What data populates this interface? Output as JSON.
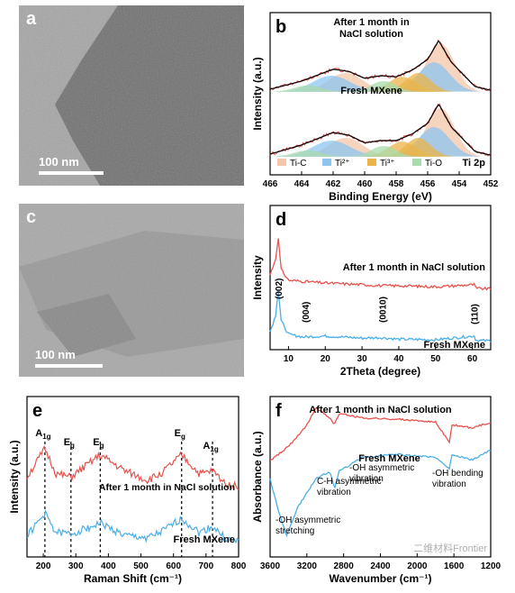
{
  "panel_a": {
    "letter": "a",
    "scalebar": "100 nm"
  },
  "panel_c": {
    "letter": "c",
    "scalebar": "100 nm"
  },
  "chart_data": [
    {
      "panel": "b",
      "type": "line",
      "xlabel": "Binding Energy (eV)",
      "ylabel": "Intensity (a.u.)",
      "x_reversed": true,
      "xlim": [
        466,
        452
      ],
      "xticks": [
        "466",
        "464",
        "462",
        "460",
        "458",
        "456",
        "454",
        "452"
      ],
      "spectrum_label": "Ti 2p",
      "legend": [
        "Ti-C",
        "Ti²⁺",
        "Ti³⁺",
        "Ti-O"
      ],
      "legend_colors": [
        "#f4c6a8",
        "#8ec5ef",
        "#e9b44a",
        "#a8dcae"
      ],
      "series": [
        {
          "name": "After 1 month in NaCl solution",
          "label_lines": [
            "After 1 month in",
            "NaCl solution"
          ],
          "x": [
            466,
            464,
            462,
            461,
            460,
            459,
            458,
            457,
            456,
            455.3,
            454.5,
            453,
            452
          ],
          "y": [
            0.05,
            0.2,
            0.42,
            0.38,
            0.25,
            0.3,
            0.28,
            0.4,
            0.6,
            0.95,
            0.55,
            0.1,
            0.03
          ]
        },
        {
          "name": "Fresh MXene",
          "label_lines": [
            "Fresh MXene"
          ],
          "x": [
            466,
            464,
            462,
            461,
            460,
            459,
            458,
            457,
            456,
            455.3,
            454.5,
            453,
            452
          ],
          "y": [
            0.05,
            0.22,
            0.45,
            0.4,
            0.26,
            0.3,
            0.3,
            0.42,
            0.62,
            0.98,
            0.55,
            0.1,
            0.03
          ]
        }
      ]
    },
    {
      "panel": "d",
      "type": "line",
      "xlabel": "2Theta (degree)",
      "ylabel": "Intensity",
      "xlim": [
        5,
        65
      ],
      "xticks": [
        "10",
        "20",
        "30",
        "40",
        "50",
        "60"
      ],
      "series": [
        {
          "name": "After 1 month in NaCl solution",
          "color": "#e8514c",
          "x": [
            5,
            6.5,
            7.2,
            8,
            10,
            20,
            30,
            35,
            40,
            50,
            60.5,
            61,
            65
          ],
          "y": [
            0.3,
            0.6,
            1.0,
            0.4,
            0.2,
            0.15,
            0.12,
            0.1,
            0.1,
            0.08,
            0.12,
            0.05,
            0.04
          ]
        },
        {
          "name": "Fresh MXene",
          "color": "#4aaee8",
          "x": [
            5,
            6.5,
            7.2,
            8,
            10,
            14,
            20,
            30,
            35,
            40,
            50,
            60.5,
            61,
            65
          ],
          "y": [
            0.2,
            0.5,
            1.0,
            0.4,
            0.15,
            0.1,
            0.12,
            0.08,
            0.09,
            0.06,
            0.05,
            0.12,
            0.04,
            0.03
          ]
        }
      ],
      "peak_labels": [
        {
          "text": "(002)",
          "x": 7.2
        },
        {
          "text": "(004)",
          "x": 14.5
        },
        {
          "text": "(0010)",
          "x": 35.5
        },
        {
          "text": "(110)",
          "x": 60.5
        }
      ]
    },
    {
      "panel": "e",
      "type": "line",
      "xlabel": "Raman Shift (cm⁻¹)",
      "ylabel": "Intensity (a.u.)",
      "xlim": [
        150,
        800
      ],
      "xticks": [
        "200",
        "300",
        "400",
        "500",
        "600",
        "700",
        "800"
      ],
      "mode_positions": [
        205,
        285,
        375,
        625,
        720
      ],
      "mode_labels": [
        {
          "main": "A",
          "sub": "1g"
        },
        {
          "main": "E",
          "sub": "g"
        },
        {
          "main": "E",
          "sub": "g"
        },
        {
          "main": "E",
          "sub": "g"
        },
        {
          "main": "A",
          "sub": "1g"
        }
      ],
      "series": [
        {
          "name": "After 1 month in NaCl solution",
          "color": "#e8514c",
          "x": [
            150,
            205,
            240,
            285,
            375,
            450,
            520,
            560,
            625,
            680,
            720,
            760,
            800
          ],
          "y": [
            0.5,
            0.95,
            0.55,
            0.5,
            0.85,
            0.6,
            0.45,
            0.55,
            0.85,
            0.55,
            0.6,
            0.4,
            0.35
          ]
        },
        {
          "name": "Fresh MXene",
          "color": "#4aaee8",
          "x": [
            150,
            205,
            240,
            285,
            375,
            450,
            520,
            560,
            625,
            680,
            720,
            760,
            800
          ],
          "y": [
            0.15,
            0.5,
            0.2,
            0.18,
            0.35,
            0.15,
            0.12,
            0.2,
            0.42,
            0.2,
            0.3,
            0.1,
            0.05
          ]
        }
      ]
    },
    {
      "panel": "f",
      "type": "line",
      "xlabel": "Wavenumber (cm⁻¹)",
      "ylabel": "Absorbance (a.u.)",
      "x_reversed": true,
      "xlim": [
        3600,
        1200
      ],
      "xticks": [
        "3600",
        "3200",
        "2800",
        "2400",
        "2000",
        "1600",
        "1200"
      ],
      "series": [
        {
          "name": "After 1 month in NaCl solution",
          "color": "#e8514c",
          "x": [
            3600,
            3400,
            3200,
            3100,
            2950,
            2900,
            2850,
            2600,
            2200,
            1800,
            1650,
            1620,
            1400,
            1200
          ],
          "y": [
            0.55,
            0.65,
            0.8,
            0.92,
            0.85,
            0.8,
            0.88,
            0.85,
            0.84,
            0.82,
            0.68,
            0.8,
            0.78,
            0.82
          ]
        },
        {
          "name": "Fresh MXene",
          "color": "#4aaee8",
          "x": [
            3600,
            3500,
            3420,
            3300,
            3100,
            2950,
            2900,
            2850,
            2600,
            2200,
            1800,
            1650,
            1620,
            1400,
            1200
          ],
          "y": [
            0.55,
            0.3,
            0.15,
            0.35,
            0.55,
            0.6,
            0.48,
            0.6,
            0.7,
            0.72,
            0.7,
            0.62,
            0.72,
            0.68,
            0.75
          ]
        }
      ],
      "annotations": [
        {
          "lines": [
            "-OH asymmetric",
            "stretching"
          ]
        },
        {
          "lines": [
            "C-H asymmetric",
            "vibration"
          ]
        },
        {
          "lines": [
            "-OH asymmetric",
            "vibration"
          ]
        },
        {
          "lines": [
            "-OH bending",
            "vibration"
          ]
        }
      ]
    }
  ],
  "letters": {
    "b": "b",
    "d": "d",
    "e": "e",
    "f": "f"
  },
  "watermark": "二维材料Frontier"
}
